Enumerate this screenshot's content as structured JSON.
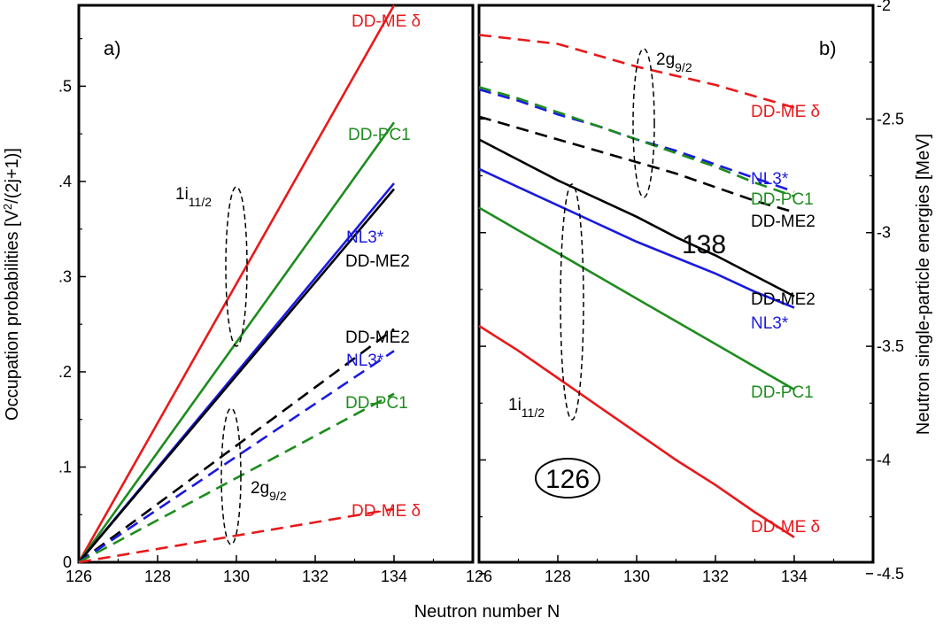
{
  "figure": {
    "xlabel": "Neutron number N",
    "colors": {
      "DD-ME δ": "#e8191b",
      "DD-PC1": "#1e8c1e",
      "NL3*": "#1a1ae0",
      "DD-ME2": "#000000"
    }
  },
  "chart_data": [
    {
      "type": "line",
      "panel_label": "a)",
      "xlabel": "Neutron number N",
      "ylabel": "Occupation probabilities [V²/(2j+1)]",
      "xlim": [
        126,
        136
      ],
      "ylim": [
        0,
        0.585
      ],
      "x_ticks": [
        126,
        128,
        130,
        132,
        134
      ],
      "y_ticks": [
        0,
        0.1,
        0.2,
        0.3,
        0.4,
        0.5
      ],
      "x": [
        126,
        134
      ],
      "series": [
        {
          "name": "DD-ME δ",
          "orbital": "1i11/2",
          "style": "solid",
          "color": "#e8191b",
          "values": [
            0,
            0.585
          ]
        },
        {
          "name": "DD-PC1",
          "orbital": "1i11/2",
          "style": "solid",
          "color": "#1e8c1e",
          "values": [
            0,
            0.462
          ]
        },
        {
          "name": "NL3*",
          "orbital": "1i11/2",
          "style": "solid",
          "color": "#1a1ae0",
          "values": [
            0,
            0.398
          ]
        },
        {
          "name": "DD-ME2",
          "orbital": "1i11/2",
          "style": "solid",
          "color": "#000000",
          "values": [
            0,
            0.392
          ]
        },
        {
          "name": "DD-ME2",
          "orbital": "2g9/2",
          "style": "dashed",
          "color": "#000000",
          "values": [
            0,
            0.245
          ]
        },
        {
          "name": "NL3*",
          "orbital": "2g9/2",
          "style": "dashed",
          "color": "#1a1ae0",
          "values": [
            0,
            0.222
          ]
        },
        {
          "name": "DD-PC1",
          "orbital": "2g9/2",
          "style": "dashed",
          "color": "#1e8c1e",
          "values": [
            0,
            0.177
          ]
        },
        {
          "name": "DD-ME δ",
          "orbital": "2g9/2",
          "style": "dashed",
          "color": "#e8191b",
          "values": [
            0,
            0.056
          ]
        }
      ],
      "annotations": [
        {
          "text": "1i",
          "sub": "11/2"
        },
        {
          "text": "2g",
          "sub": "9/2"
        }
      ]
    },
    {
      "type": "line",
      "panel_label": "b)",
      "xlabel": "Neutron number N",
      "ylabel": "Neutron single-particle  energies  [MeV]",
      "xlim": [
        126,
        136
      ],
      "ylim": [
        -4.45,
        -2.0
      ],
      "x_ticks": [
        126,
        128,
        130,
        132,
        134
      ],
      "y_ticks": [
        -2,
        -2.5,
        -3,
        -3.5,
        -4,
        -4.5
      ],
      "x": [
        126,
        127,
        128,
        129,
        130,
        131,
        132,
        133,
        134
      ],
      "series": [
        {
          "name": "DD-ME δ",
          "orbital": "2g9/2",
          "style": "dashed",
          "color": "#e8191b",
          "values": [
            -2.13,
            -2.15,
            -2.17,
            -2.22,
            -2.27,
            -2.31,
            -2.35,
            -2.4,
            -2.45
          ]
        },
        {
          "name": "NL3*",
          "orbital": "2g9/2",
          "style": "dashed",
          "color": "#1a1ae0",
          "values": [
            -2.37,
            -2.42,
            -2.48,
            -2.53,
            -2.59,
            -2.64,
            -2.7,
            -2.76,
            -2.82
          ]
        },
        {
          "name": "DD-PC1",
          "orbital": "2g9/2",
          "style": "dashed",
          "color": "#1e8c1e",
          "values": [
            -2.36,
            -2.41,
            -2.47,
            -2.53,
            -2.59,
            -2.65,
            -2.71,
            -2.78,
            -2.84
          ]
        },
        {
          "name": "DD-ME2",
          "orbital": "2g9/2",
          "style": "dashed",
          "color": "#000000",
          "values": [
            -2.49,
            -2.54,
            -2.59,
            -2.64,
            -2.69,
            -2.74,
            -2.8,
            -2.86,
            -2.91
          ]
        },
        {
          "name": "DD-ME2",
          "orbital": "1i11/2",
          "style": "solid",
          "color": "#000000",
          "values": [
            -2.59,
            -2.68,
            -2.77,
            -2.85,
            -2.93,
            -3.02,
            -3.1,
            -3.19,
            -3.28
          ]
        },
        {
          "name": "NL3*",
          "orbital": "1i11/2",
          "style": "solid",
          "color": "#1a1ae0",
          "values": [
            -2.72,
            -2.8,
            -2.88,
            -2.96,
            -3.04,
            -3.11,
            -3.18,
            -3.26,
            -3.33
          ]
        },
        {
          "name": "DD-PC1",
          "orbital": "1i11/2",
          "style": "solid",
          "color": "#1e8c1e",
          "values": [
            -2.89,
            -2.99,
            -3.09,
            -3.19,
            -3.29,
            -3.39,
            -3.49,
            -3.59,
            -3.69
          ]
        },
        {
          "name": "DD-ME δ",
          "orbital": "1i11/2",
          "style": "solid",
          "color": "#e8191b",
          "values": [
            -3.41,
            -3.52,
            -3.64,
            -3.76,
            -3.88,
            -4.0,
            -4.11,
            -4.23,
            -4.34
          ]
        }
      ],
      "annotations": [
        {
          "text": "2g",
          "sub": "9/2"
        },
        {
          "text": "1i",
          "sub": "11/2"
        },
        {
          "text": "138"
        },
        {
          "text": "126",
          "circled": true
        }
      ]
    }
  ]
}
